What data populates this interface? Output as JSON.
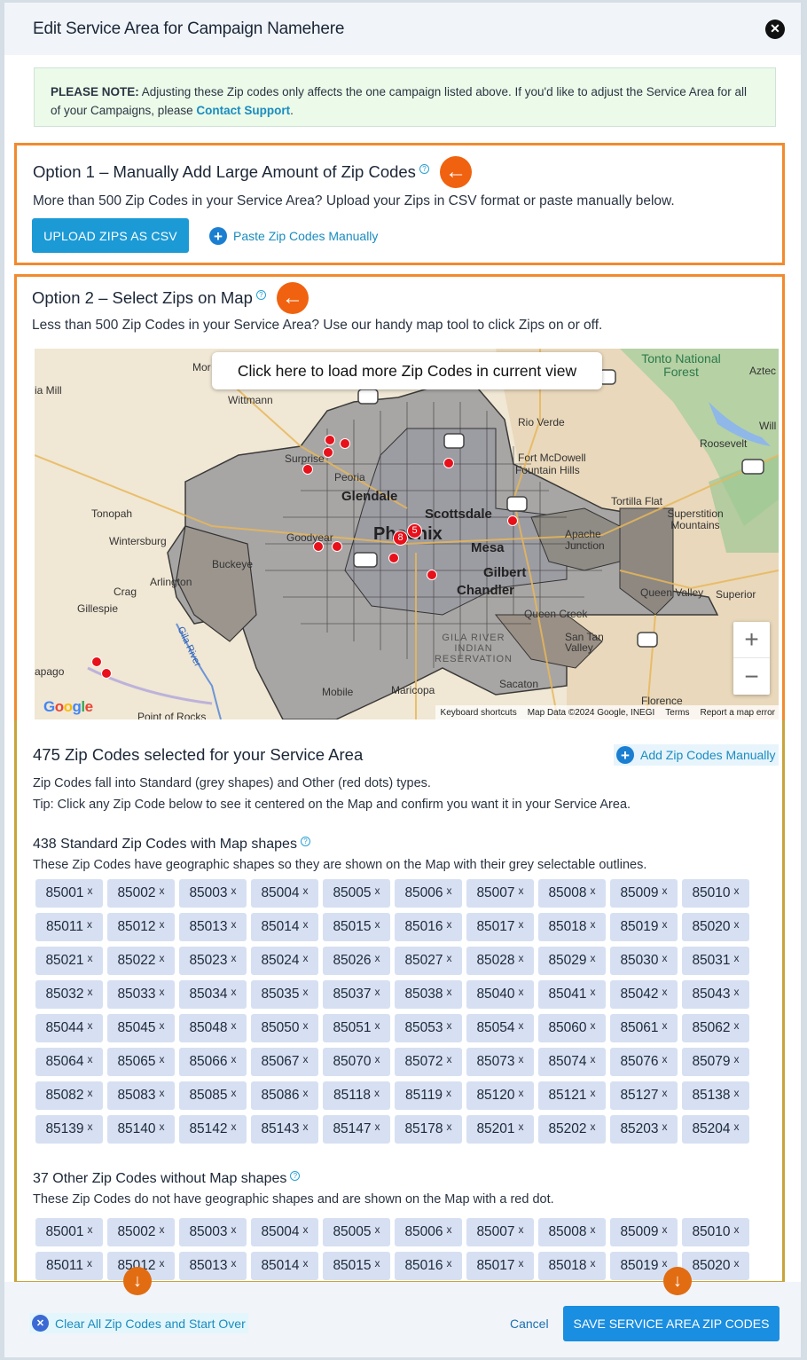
{
  "header": {
    "title": "Edit Service Area for Campaign Namehere"
  },
  "note": {
    "label": "PLEASE NOTE:",
    "text": " Adjusting these Zip codes only affects the one campaign listed above. If you'd like to adjust the Service Area for all of your Campaigns, please ",
    "link": "Contact Support",
    "end": "."
  },
  "option1": {
    "title": "Option 1 – Manually Add Large Amount of Zip Codes",
    "description": "More than 500 Zip Codes in your Service Area? Upload your Zips in CSV format or paste manually below.",
    "upload_label": "UPLOAD ZIPS AS CSV",
    "paste_label": "Paste Zip Codes Manually"
  },
  "option2": {
    "title": "Option 2 – Select Zips on Map",
    "description": "Less than 500 Zip Codes in your Service Area? Use our handy map tool to click Zips on or off."
  },
  "map": {
    "load_more": "Click here to load more Zip Codes in current view",
    "labels": [
      "Mor",
      "ia Mill",
      "Wittmann",
      "Surprise",
      "Peoria",
      "Glendale",
      "Tonopah",
      "Wintersburg",
      "Goodyear",
      "Phoenix",
      "Scottsdale",
      "Mesa",
      "Gilbert",
      "Chandler",
      "Buckeye",
      "Arlington",
      "Crag",
      "Gillespie",
      "apago",
      "Gila River",
      "Mobile",
      "Maricopa",
      "Sacaton",
      "Queen Creek",
      "San Tan Valley",
      "Queen Valley",
      "Superior",
      "Florence",
      "Apache Junction",
      "Tortilla Flat",
      "Superstition Mountains",
      "Fort McDowell",
      "Fountain Hills",
      "Rio Verde",
      "Roosevelt",
      "Will",
      "Aztec",
      "Tonto National Forest",
      "GILA RIVER INDIAN RESERVATION",
      "Point of Rocks"
    ],
    "clusters": [
      "5",
      "8"
    ],
    "zoom_in": "+",
    "zoom_out": "−",
    "footer": [
      "Keyboard shortcuts",
      "Map Data ©2024 Google, INEGI",
      "Terms",
      "Report a map error"
    ],
    "brand": "Google"
  },
  "selected": {
    "title": "475 Zip Codes selected for your Service Area",
    "add_manually": "Add Zip Codes Manually",
    "line1": "Zip Codes fall into Standard (grey shapes) and Other (red dots) types.",
    "line2": "Tip: Click any Zip Code below to see it centered on the Map and confirm you want it in your Service Area."
  },
  "standard": {
    "title": "438 Standard Zip Codes with Map shapes",
    "description": "These Zip Codes have geographic shapes so they are shown on the Map with their grey selectable outlines.",
    "zips": [
      "85001",
      "85002",
      "85003",
      "85004",
      "85005",
      "85006",
      "85007",
      "85008",
      "85009",
      "85010",
      "85011",
      "85012",
      "85013",
      "85014",
      "85015",
      "85016",
      "85017",
      "85018",
      "85019",
      "85020",
      "85021",
      "85022",
      "85023",
      "85024",
      "85026",
      "85027",
      "85028",
      "85029",
      "85030",
      "85031",
      "85032",
      "85033",
      "85034",
      "85035",
      "85037",
      "85038",
      "85040",
      "85041",
      "85042",
      "85043",
      "85044",
      "85045",
      "85048",
      "85050",
      "85051",
      "85053",
      "85054",
      "85060",
      "85061",
      "85062",
      "85064",
      "85065",
      "85066",
      "85067",
      "85070",
      "85072",
      "85073",
      "85074",
      "85076",
      "85079",
      "85082",
      "85083",
      "85085",
      "85086",
      "85118",
      "85119",
      "85120",
      "85121",
      "85127",
      "85138",
      "85139",
      "85140",
      "85142",
      "85143",
      "85147",
      "85178",
      "85201",
      "85202",
      "85203",
      "85204"
    ]
  },
  "other": {
    "title": "37 Other Zip Codes without Map shapes",
    "description": "These Zip Codes do not have geographic shapes and are shown on the Map with a red dot.",
    "zips": [
      "85001",
      "85002",
      "85003",
      "85004",
      "85005",
      "85006",
      "85007",
      "85008",
      "85009",
      "85010",
      "85011",
      "85012",
      "85013",
      "85014",
      "85015",
      "85016",
      "85017",
      "85018",
      "85019",
      "85020"
    ]
  },
  "chip_remove": "x",
  "footer": {
    "clear_label": "Clear All Zip Codes and Start Over",
    "cancel_label": "Cancel",
    "save_label": "SAVE SERVICE AREA ZIP CODES"
  },
  "colors": {
    "accent": "#1b9ad6",
    "highlight_border": "#f28a2e",
    "arrow_badge": "#f0620f",
    "chip_bg": "#d6e0f2",
    "note_bg": "#ebfae9"
  }
}
